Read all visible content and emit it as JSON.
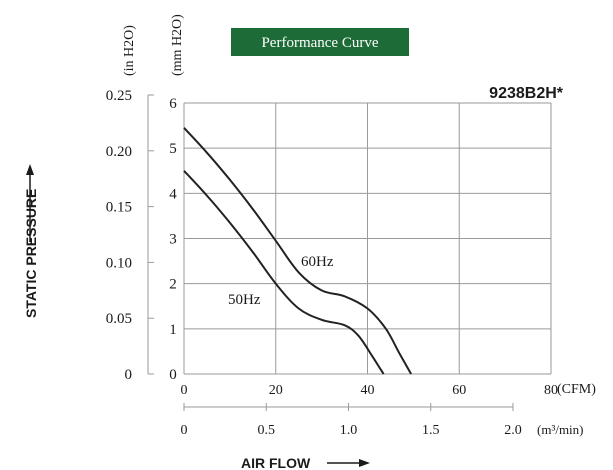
{
  "chart_data": {
    "type": "line",
    "title": "Performance Curve",
    "model": "9238B2H*",
    "colors": {
      "title_bg": "#1d6b36",
      "title_text": "#ffffff",
      "line": "#222222",
      "grid": "#9a9a9a"
    },
    "xlabel": "AIR FLOW",
    "ylabel": "STATIC PRESSURE",
    "x_unit": "(CFM)",
    "x2_unit": "(m³/min)",
    "y_unit": "(mm H2O)",
    "y2_unit": "(in H2O)",
    "xlim": [
      0,
      80
    ],
    "ylim": [
      0,
      6
    ],
    "grid": true,
    "x_ticks": [
      "0",
      "20",
      "40",
      "60",
      "80"
    ],
    "x2_ticks": [
      "0",
      "0.5",
      "1.0",
      "1.5",
      "2.0"
    ],
    "y_ticks": [
      "0",
      "1",
      "2",
      "3",
      "4",
      "5",
      "6"
    ],
    "y2_ticks": [
      "0",
      "0.05",
      "0.10",
      "0.15",
      "0.20",
      "0.25"
    ],
    "series": [
      {
        "name": "60Hz",
        "x": [
          0,
          5,
          10,
          15,
          20,
          25,
          30,
          35,
          40,
          44,
          47,
          49.5
        ],
        "y": [
          5.45,
          4.9,
          4.3,
          3.65,
          2.95,
          2.25,
          1.85,
          1.72,
          1.45,
          1.0,
          0.45,
          0.0
        ]
      },
      {
        "name": "50Hz",
        "x": [
          0,
          5,
          10,
          15,
          20,
          25,
          30,
          35,
          38,
          41,
          43.5
        ],
        "y": [
          4.5,
          3.95,
          3.35,
          2.7,
          2.0,
          1.45,
          1.2,
          1.08,
          0.85,
          0.4,
          0.0
        ]
      }
    ]
  }
}
